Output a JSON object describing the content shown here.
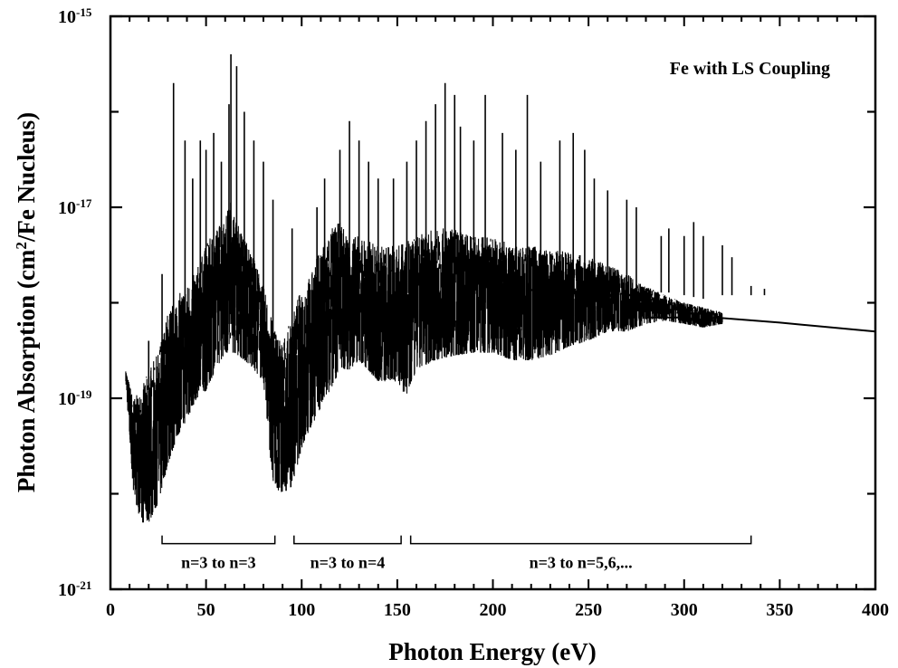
{
  "chart_data": {
    "type": "line",
    "title": "Fe with LS Coupling",
    "xlabel": "Photon Energy (eV)",
    "ylabel": {
      "prefix": "Photon Absorption (cm",
      "sup": "2",
      "suffix": "/Fe Nucleus)"
    },
    "x_scale": "linear",
    "y_scale": "log",
    "xlim": [
      0,
      400
    ],
    "ylim": [
      1e-21,
      1e-15
    ],
    "x_ticks": [
      0,
      50,
      100,
      150,
      200,
      250,
      300,
      350,
      400
    ],
    "x_tick_labels": [
      "0",
      "50",
      "100",
      "150",
      "200",
      "250",
      "300",
      "350",
      "400"
    ],
    "y_tick_labels": [
      {
        "value": 1e-15,
        "base": "10",
        "exp": "-15"
      },
      {
        "value": 1e-17,
        "base": "10",
        "exp": "-17"
      },
      {
        "value": 1e-19,
        "base": "10",
        "exp": "-19"
      },
      {
        "value": 1e-21,
        "base": "10",
        "exp": "-21"
      }
    ],
    "grid": false,
    "series": [
      {
        "upper_envelope": [
          [
            8,
            2e-19
          ],
          [
            12,
            1e-19
          ],
          [
            16,
            1.2e-19
          ],
          [
            20,
            2e-19
          ],
          [
            25,
            3e-19
          ],
          [
            30,
            8e-19
          ],
          [
            35,
            1.2e-18
          ],
          [
            40,
            1.5e-18
          ],
          [
            45,
            2.2e-18
          ],
          [
            50,
            4e-18
          ],
          [
            55,
            6e-18
          ],
          [
            60,
            8e-18
          ],
          [
            63,
            1.2e-17
          ],
          [
            66,
            7e-18
          ],
          [
            70,
            5e-18
          ],
          [
            75,
            3e-18
          ],
          [
            80,
            1.5e-18
          ],
          [
            85,
            6e-19
          ],
          [
            90,
            4e-19
          ],
          [
            95,
            7e-19
          ],
          [
            100,
            1.5e-18
          ],
          [
            105,
            2e-18
          ],
          [
            110,
            4e-18
          ],
          [
            115,
            6e-18
          ],
          [
            120,
            7e-18
          ],
          [
            125,
            5e-18
          ],
          [
            130,
            5e-18
          ],
          [
            140,
            4e-18
          ],
          [
            150,
            4e-18
          ],
          [
            160,
            5e-18
          ],
          [
            170,
            6e-18
          ],
          [
            180,
            6e-18
          ],
          [
            190,
            5e-18
          ],
          [
            200,
            5e-18
          ],
          [
            210,
            4e-18
          ],
          [
            220,
            4e-18
          ],
          [
            230,
            3.5e-18
          ],
          [
            240,
            3.5e-18
          ],
          [
            250,
            3e-18
          ],
          [
            260,
            2.5e-18
          ],
          [
            270,
            2e-18
          ],
          [
            280,
            1.5e-18
          ],
          [
            290,
            1.2e-18
          ],
          [
            300,
            1e-18
          ],
          [
            310,
            9e-19
          ],
          [
            320,
            8e-19
          ]
        ],
        "lower_envelope": [
          [
            8,
            1.5e-19
          ],
          [
            12,
            1e-20
          ],
          [
            16,
            5e-21
          ],
          [
            20,
            5e-21
          ],
          [
            25,
            8e-21
          ],
          [
            30,
            2e-20
          ],
          [
            35,
            4e-20
          ],
          [
            40,
            6e-20
          ],
          [
            45,
            1e-19
          ],
          [
            50,
            1.2e-19
          ],
          [
            55,
            2e-19
          ],
          [
            60,
            3e-19
          ],
          [
            65,
            3e-19
          ],
          [
            70,
            2.5e-19
          ],
          [
            75,
            2e-19
          ],
          [
            80,
            1.5e-19
          ],
          [
            85,
            1.2e-20
          ],
          [
            90,
            1e-20
          ],
          [
            95,
            1.2e-20
          ],
          [
            100,
            3e-20
          ],
          [
            105,
            5e-20
          ],
          [
            110,
            8e-20
          ],
          [
            115,
            1.2e-19
          ],
          [
            120,
            2e-19
          ],
          [
            125,
            2e-19
          ],
          [
            130,
            2.5e-19
          ],
          [
            140,
            1.5e-19
          ],
          [
            150,
            1.5e-19
          ],
          [
            155,
            1e-19
          ],
          [
            160,
            2e-19
          ],
          [
            170,
            2.5e-19
          ],
          [
            180,
            2.8e-19
          ],
          [
            190,
            3e-19
          ],
          [
            200,
            3e-19
          ],
          [
            210,
            2.5e-19
          ],
          [
            220,
            2.5e-19
          ],
          [
            230,
            2.8e-19
          ],
          [
            240,
            3.5e-19
          ],
          [
            250,
            4e-19
          ],
          [
            260,
            5e-19
          ],
          [
            270,
            5e-19
          ],
          [
            280,
            6e-19
          ],
          [
            290,
            6.5e-19
          ],
          [
            300,
            6e-19
          ],
          [
            310,
            5.5e-19
          ],
          [
            320,
            6e-19
          ]
        ],
        "continuum": [
          [
            280,
            7e-19
          ],
          [
            300,
            7e-19
          ],
          [
            312,
            6.5e-19
          ],
          [
            316,
            7e-19
          ],
          [
            350,
            6.2e-19
          ],
          [
            400,
            5e-19
          ]
        ],
        "peaks": [
          [
            20,
            4e-19
          ],
          [
            27,
            2e-18
          ],
          [
            33,
            2e-16
          ],
          [
            39,
            5e-17
          ],
          [
            43,
            2e-17
          ],
          [
            47,
            5e-17
          ],
          [
            50,
            4e-17
          ],
          [
            54,
            6e-17
          ],
          [
            58,
            3e-17
          ],
          [
            62,
            1.2e-16
          ],
          [
            63,
            4e-16
          ],
          [
            66,
            3e-16
          ],
          [
            70,
            1e-16
          ],
          [
            75,
            5e-17
          ],
          [
            80,
            3e-17
          ],
          [
            85,
            1.2e-17
          ],
          [
            95,
            6e-18
          ],
          [
            108,
            1e-17
          ],
          [
            112,
            2e-17
          ],
          [
            120,
            4e-17
          ],
          [
            125,
            8e-17
          ],
          [
            130,
            5e-17
          ],
          [
            135,
            3e-17
          ],
          [
            140,
            2e-17
          ],
          [
            148,
            2e-17
          ],
          [
            155,
            3e-17
          ],
          [
            160,
            5e-17
          ],
          [
            165,
            8e-17
          ],
          [
            170,
            1.2e-16
          ],
          [
            175,
            2e-16
          ],
          [
            180,
            1.5e-16
          ],
          [
            183,
            7e-17
          ],
          [
            190,
            5e-17
          ],
          [
            196,
            1.5e-16
          ],
          [
            205,
            6e-17
          ],
          [
            212,
            4e-17
          ],
          [
            218,
            1.5e-16
          ],
          [
            225,
            3e-17
          ],
          [
            235,
            5e-17
          ],
          [
            242,
            6e-17
          ],
          [
            248,
            4e-17
          ],
          [
            253,
            2e-17
          ],
          [
            260,
            1.5e-17
          ],
          [
            270,
            1.2e-17
          ],
          [
            275,
            1e-17
          ],
          [
            288,
            5e-18
          ],
          [
            292,
            6e-18
          ],
          [
            300,
            5e-18
          ],
          [
            305,
            7e-18
          ],
          [
            310,
            5e-18
          ],
          [
            320,
            4e-18
          ],
          [
            325,
            3e-18
          ],
          [
            335,
            1.5e-18
          ],
          [
            342,
            1.4e-18
          ]
        ]
      }
    ],
    "annotations": [
      {
        "text": "n=3 to n=3",
        "x_start": 27,
        "x_end": 86
      },
      {
        "text": "n=3 to n=4",
        "x_start": 96,
        "x_end": 152
      },
      {
        "text": "n=3 to n=5,6,...",
        "x_start": 157,
        "x_end": 335
      }
    ],
    "bracket_level": 3e-21,
    "legend": "none"
  }
}
